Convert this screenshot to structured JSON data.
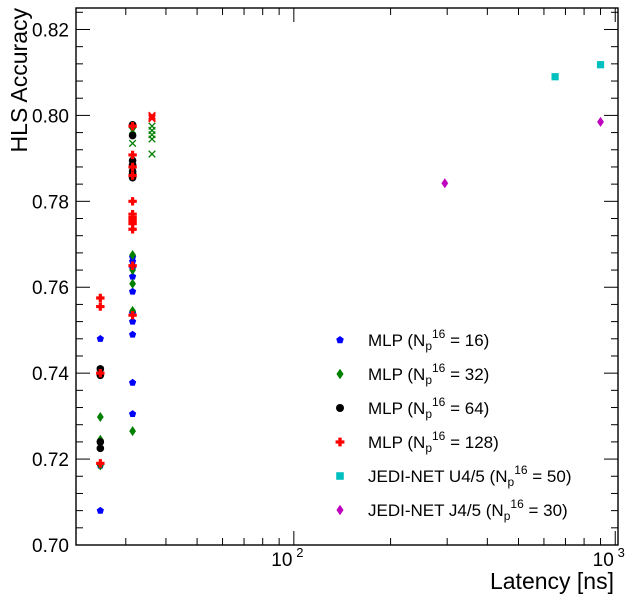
{
  "chart_data": {
    "type": "scatter",
    "xlabel": "Latency [ns]",
    "ylabel": "HLS Accuracy",
    "xscale": "log",
    "xlim": [
      21,
      1020
    ],
    "ylim": [
      0.7,
      0.825
    ],
    "x_tick_labels": [
      {
        "value": 100,
        "base": "10",
        "exp": "2"
      },
      {
        "value": 1000,
        "base": "10",
        "exp": "3"
      }
    ],
    "y_ticks": [
      0.7,
      0.72,
      0.74,
      0.76,
      0.78,
      0.8,
      0.82
    ],
    "y_tick_labels": [
      "0.70",
      "0.72",
      "0.74",
      "0.76",
      "0.78",
      "0.80",
      "0.82"
    ],
    "legend_position": "bottom-right",
    "series": [
      {
        "name": "MLP",
        "legend": {
          "prefix": "MLP (N",
          "sub": "p",
          "sup": "16",
          "suffix": " = 16)"
        },
        "marker": "pentagon",
        "color": "#0000ff",
        "multi_colors": [
          "#0000ff",
          "#ff0000"
        ],
        "x": [
          25,
          25,
          25,
          25,
          25,
          25,
          31.5,
          31.5,
          31.5,
          31.5,
          31.5,
          31.5,
          31.5,
          31.5,
          31.5,
          31.5
        ],
        "y": [
          0.708,
          0.724,
          0.7395,
          0.7185,
          0.741,
          0.748,
          0.7305,
          0.7378,
          0.749,
          0.752,
          0.754,
          0.759,
          0.7625,
          0.7645,
          0.766,
          0.767
        ]
      },
      {
        "name": "MLP",
        "legend": {
          "prefix": "MLP (N",
          "sub": "p",
          "sup": "16",
          "suffix": " = 32)"
        },
        "marker": "diamond",
        "color": "#008000",
        "x": [
          25,
          25,
          25,
          31.5,
          31.5,
          31.5,
          31.5,
          31.5,
          31.5,
          31.5,
          31.5,
          31.5
        ],
        "y": [
          0.7185,
          0.7245,
          0.7298,
          0.7265,
          0.7545,
          0.7608,
          0.764,
          0.7675,
          0.776,
          0.787,
          0.7898,
          0.797
        ],
        "extra_x_markers": {
          "marker": "x",
          "x": [
            31.5,
            31.5,
            36.2,
            36.2,
            36.2,
            36.2,
            36.2
          ],
          "y": [
            0.7935,
            0.7965,
            0.791,
            0.7945,
            0.7955,
            0.7965,
            0.7975
          ]
        }
      },
      {
        "name": "MLP",
        "legend": {
          "prefix": "MLP (N",
          "sub": "p",
          "sup": "16",
          "suffix": " = 64)"
        },
        "marker": "circle",
        "color": "#000000",
        "x": [
          25,
          25,
          25,
          25,
          31.5,
          31.5,
          31.5,
          31.5,
          31.5,
          31.5,
          31.5
        ],
        "y": [
          0.7225,
          0.724,
          0.7395,
          0.741,
          0.7855,
          0.7865,
          0.787,
          0.7885,
          0.7895,
          0.7953,
          0.7978
        ]
      },
      {
        "name": "MLP",
        "legend": {
          "prefix": "MLP (N",
          "sub": "p",
          "sup": "16",
          "suffix": " = 128)"
        },
        "marker": "plus",
        "color": "#ff0000",
        "x": [
          25,
          25,
          25,
          25,
          31.5,
          31.5,
          31.5,
          31.5,
          31.5,
          31.5,
          31.5,
          31.5,
          31.5,
          31.5,
          31.5,
          31.5
        ],
        "y": [
          0.719,
          0.74,
          0.7555,
          0.7575,
          0.7535,
          0.765,
          0.7735,
          0.7748,
          0.7755,
          0.7762,
          0.777,
          0.78,
          0.786,
          0.788,
          0.7908,
          0.7975
        ],
        "extra_x_markers": {
          "marker": "x",
          "x": [
            36.2,
            36.2,
            36.2,
            36.2
          ],
          "y": [
            0.7992,
            0.7995,
            0.7998,
            0.8
          ]
        }
      },
      {
        "name": "JEDI-NET U4/5",
        "legend": {
          "prefix": "JEDI-NET U4/5 (N",
          "sub": "p",
          "sup": "16",
          "suffix": " = 50)"
        },
        "marker": "square",
        "color": "#00bfbf",
        "x": [
          650,
          900
        ],
        "y": [
          0.809,
          0.8118
        ]
      },
      {
        "name": "JEDI-NET J4/5",
        "legend": {
          "prefix": "JEDI-NET J4/5 (N",
          "sub": "p",
          "sup": "16",
          "suffix": " = 30)"
        },
        "marker": "diamond",
        "color": "#bf00bf",
        "x": [
          295,
          900
        ],
        "y": [
          0.7842,
          0.7985
        ]
      }
    ]
  }
}
